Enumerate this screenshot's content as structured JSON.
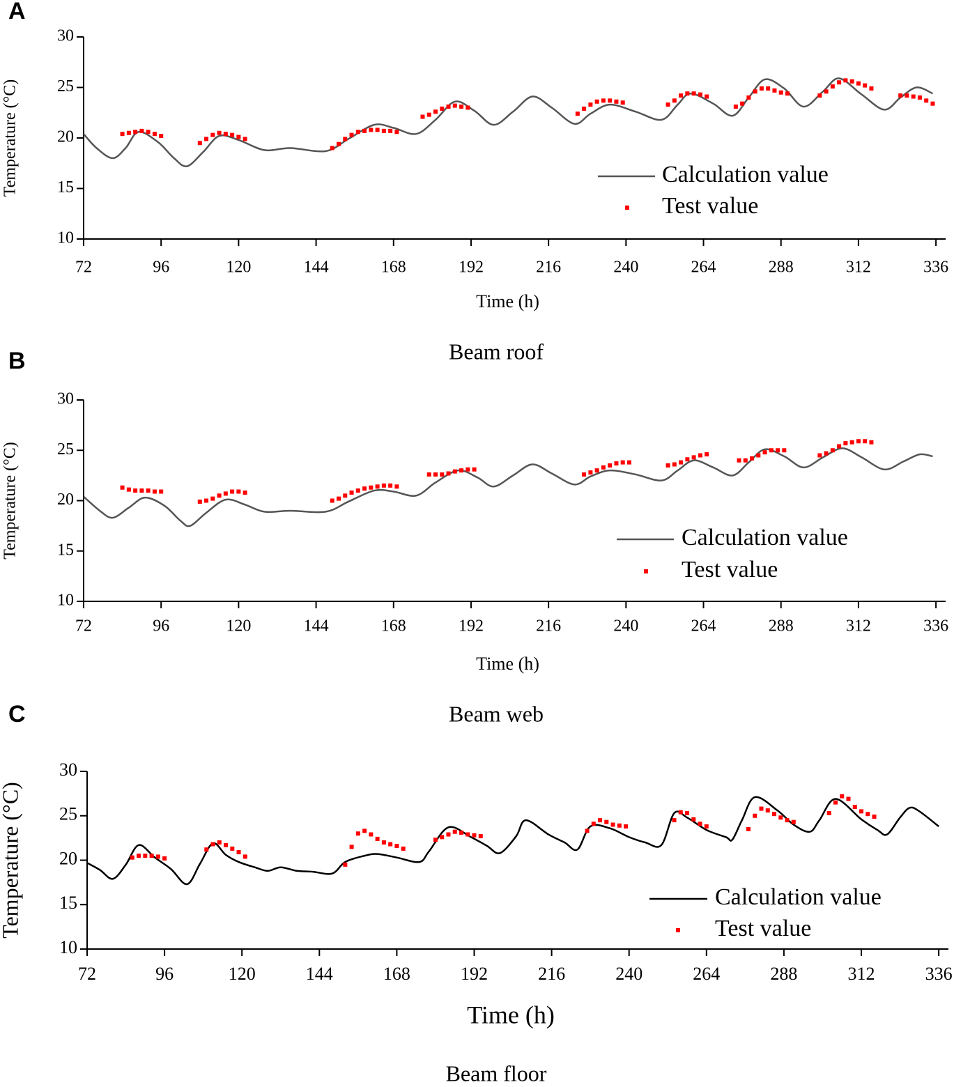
{
  "chart_data": [
    {
      "type": "line",
      "panel_label": "A",
      "title": "Beam roof",
      "xlabel": "Time (h)",
      "ylabel": "Temperature (°C)",
      "xlim": [
        72,
        339
      ],
      "xticks": [
        72,
        96,
        120,
        144,
        168,
        192,
        216,
        240,
        264,
        288,
        312,
        336
      ],
      "ylim": [
        10,
        30
      ],
      "yticks": [
        10,
        15,
        20,
        25,
        30
      ],
      "series": [
        {
          "name": "Calculation value",
          "type": "line",
          "color": "#555555",
          "x": [
            72,
            76,
            81,
            85,
            89,
            95,
            100,
            104,
            109,
            114,
            120,
            128,
            136,
            147,
            154,
            162,
            168,
            175,
            181,
            187,
            193,
            199,
            205,
            211,
            217,
            224,
            229,
            235,
            243,
            251,
            256,
            260,
            267,
            273,
            278,
            283,
            289,
            295,
            301,
            306,
            313,
            320,
            325,
            330,
            335
          ],
          "values": [
            20.4,
            19.0,
            18.0,
            19.0,
            20.6,
            19.6,
            18.0,
            17.2,
            18.6,
            20.2,
            19.8,
            18.8,
            19.0,
            18.7,
            19.9,
            21.3,
            21.0,
            20.4,
            21.8,
            23.6,
            22.7,
            21.3,
            22.6,
            24.1,
            23.0,
            21.4,
            22.4,
            23.3,
            22.6,
            21.8,
            23.3,
            24.4,
            23.4,
            22.2,
            24.0,
            25.8,
            24.9,
            23.1,
            24.6,
            25.9,
            24.3,
            22.8,
            24.0,
            25.0,
            24.4
          ]
        },
        {
          "name": "Test value",
          "type": "scatter",
          "color": "#ff0000",
          "x": [
            84,
            86,
            88,
            90,
            92,
            94,
            96,
            108,
            110,
            112,
            114,
            116,
            118,
            120,
            122,
            149,
            151,
            153,
            155,
            157,
            159,
            161,
            163,
            165,
            167,
            169,
            177,
            179,
            181,
            183,
            185,
            187,
            189,
            191,
            225,
            227,
            229,
            231,
            233,
            235,
            237,
            239,
            253,
            255,
            257,
            259,
            261,
            263,
            265,
            274,
            276,
            278,
            280,
            282,
            284,
            286,
            288,
            290,
            300,
            302,
            304,
            306,
            308,
            310,
            312,
            314,
            316,
            325,
            327,
            329,
            331,
            333,
            335
          ],
          "values": [
            20.4,
            20.5,
            20.6,
            20.7,
            20.6,
            20.4,
            20.2,
            19.5,
            19.9,
            20.3,
            20.5,
            20.4,
            20.3,
            20.1,
            19.9,
            19.0,
            19.4,
            19.9,
            20.3,
            20.6,
            20.7,
            20.8,
            20.8,
            20.7,
            20.7,
            20.6,
            22.1,
            22.3,
            22.6,
            22.9,
            23.1,
            23.2,
            23.1,
            23.0,
            22.4,
            22.9,
            23.3,
            23.6,
            23.7,
            23.7,
            23.6,
            23.5,
            23.3,
            23.7,
            24.2,
            24.4,
            24.4,
            24.3,
            24.1,
            23.1,
            23.4,
            24.0,
            24.6,
            24.9,
            24.9,
            24.7,
            24.5,
            24.4,
            24.2,
            24.6,
            25.1,
            25.5,
            25.7,
            25.6,
            25.4,
            25.2,
            24.9,
            24.2,
            24.2,
            24.1,
            24.0,
            23.7,
            23.4
          ]
        }
      ]
    },
    {
      "type": "line",
      "panel_label": "B",
      "title": "Beam web",
      "xlabel": "Time (h)",
      "ylabel": "Temperature (°C)",
      "xlim": [
        72,
        339
      ],
      "xticks": [
        72,
        96,
        120,
        144,
        168,
        192,
        216,
        240,
        264,
        288,
        312,
        336
      ],
      "ylim": [
        10,
        30
      ],
      "yticks": [
        10,
        15,
        20,
        25,
        30
      ],
      "series": [
        {
          "name": "Calculation value",
          "type": "line",
          "color": "#555555",
          "x": [
            72,
            77,
            81,
            86,
            91,
            97,
            102,
            105,
            110,
            116,
            122,
            128,
            136,
            147,
            154,
            162,
            168,
            175,
            181,
            188,
            194,
            199,
            205,
            211,
            217,
            224,
            229,
            235,
            243,
            251,
            256,
            261,
            267,
            273,
            278,
            283,
            289,
            295,
            301,
            307,
            313,
            320,
            326,
            331,
            335
          ],
          "values": [
            20.4,
            19.0,
            18.3,
            19.3,
            20.3,
            19.5,
            18.0,
            17.5,
            18.8,
            20.1,
            19.6,
            18.9,
            19.0,
            18.9,
            19.9,
            21.0,
            20.9,
            20.5,
            21.8,
            23.0,
            22.3,
            21.4,
            22.5,
            23.6,
            22.7,
            21.6,
            22.4,
            23.0,
            22.6,
            22.0,
            23.0,
            24.0,
            23.3,
            22.5,
            23.8,
            25.1,
            24.4,
            23.3,
            24.3,
            25.2,
            24.3,
            23.1,
            23.9,
            24.6,
            24.4
          ]
        },
        {
          "name": "Test value",
          "type": "scatter",
          "color": "#ff0000",
          "x": [
            84,
            86,
            88,
            90,
            92,
            94,
            96,
            108,
            110,
            112,
            114,
            116,
            118,
            120,
            122,
            149,
            151,
            153,
            155,
            157,
            159,
            161,
            163,
            165,
            167,
            169,
            179,
            181,
            183,
            185,
            187,
            189,
            191,
            193,
            227,
            229,
            231,
            233,
            235,
            237,
            239,
            241,
            253,
            255,
            257,
            259,
            261,
            263,
            265,
            275,
            277,
            279,
            281,
            283,
            285,
            287,
            289,
            300,
            302,
            304,
            306,
            308,
            310,
            312,
            314,
            316
          ],
          "values": [
            21.3,
            21.1,
            21.0,
            21.0,
            21.0,
            20.9,
            20.9,
            19.9,
            20.0,
            20.2,
            20.5,
            20.7,
            20.9,
            20.9,
            20.8,
            20.0,
            20.2,
            20.5,
            20.8,
            21.0,
            21.2,
            21.3,
            21.4,
            21.5,
            21.5,
            21.4,
            22.6,
            22.6,
            22.6,
            22.7,
            22.9,
            23.0,
            23.1,
            23.1,
            22.6,
            22.8,
            23.0,
            23.3,
            23.5,
            23.7,
            23.8,
            23.8,
            23.5,
            23.6,
            23.8,
            24.1,
            24.3,
            24.5,
            24.6,
            24.0,
            24.0,
            24.2,
            24.5,
            24.8,
            25.0,
            25.0,
            25.0,
            24.5,
            24.7,
            25.0,
            25.4,
            25.7,
            25.8,
            25.9,
            25.9,
            25.8
          ]
        }
      ]
    },
    {
      "type": "line",
      "panel_label": "C",
      "title": "Beam floor",
      "xlabel": "Time (h)",
      "ylabel": "Temperature (°C)",
      "xlim": [
        72,
        339
      ],
      "xticks": [
        72,
        96,
        120,
        144,
        168,
        192,
        216,
        240,
        264,
        288,
        312,
        336
      ],
      "ylim": [
        10,
        30
      ],
      "yticks": [
        10,
        15,
        20,
        25,
        30
      ],
      "series": [
        {
          "name": "Calculation value",
          "type": "line",
          "color": "#000000",
          "x": [
            72,
            76,
            80,
            84,
            88,
            93,
            98,
            103,
            107,
            111,
            115,
            119,
            124,
            128,
            132,
            137,
            142,
            148,
            152,
            158,
            162,
            168,
            175,
            178,
            184,
            191,
            196,
            200,
            205,
            208,
            215,
            220,
            224,
            228,
            234,
            240,
            245,
            250,
            254,
            258,
            264,
            270,
            272,
            275,
            279,
            286,
            291,
            296,
            299,
            304,
            312,
            317,
            320,
            324,
            327,
            330,
            336
          ],
          "values": [
            19.7,
            18.9,
            17.9,
            19.5,
            21.7,
            20.3,
            19.0,
            17.3,
            19.6,
            21.9,
            20.6,
            19.8,
            19.2,
            18.8,
            19.2,
            18.8,
            18.7,
            18.5,
            19.8,
            20.5,
            20.7,
            20.3,
            19.8,
            21.0,
            23.7,
            22.6,
            21.6,
            20.8,
            22.7,
            24.5,
            22.9,
            22.0,
            21.2,
            23.8,
            23.6,
            22.6,
            22.0,
            21.7,
            25.3,
            24.8,
            23.4,
            22.6,
            22.3,
            24.5,
            27.1,
            25.6,
            24.0,
            23.2,
            24.5,
            26.9,
            24.6,
            23.4,
            22.9,
            24.8,
            25.9,
            25.5,
            23.8
          ]
        },
        {
          "name": "Test value",
          "type": "scatter",
          "color": "#ff0000",
          "x": [
            86,
            88,
            90,
            92,
            94,
            96,
            109,
            111,
            113,
            115,
            117,
            119,
            121,
            152,
            154,
            156,
            158,
            160,
            162,
            164,
            166,
            168,
            170,
            180,
            182,
            184,
            186,
            188,
            190,
            192,
            194,
            227,
            229,
            231,
            233,
            235,
            237,
            239,
            254,
            256,
            258,
            260,
            262,
            264,
            277,
            279,
            281,
            283,
            285,
            287,
            289,
            291,
            302,
            304,
            306,
            308,
            310,
            312,
            314,
            316
          ],
          "values": [
            20.3,
            20.5,
            20.5,
            20.5,
            20.4,
            20.2,
            21.2,
            21.8,
            22.0,
            21.7,
            21.3,
            20.9,
            20.4,
            19.5,
            21.5,
            23.0,
            23.3,
            22.9,
            22.4,
            22.0,
            21.8,
            21.6,
            21.3,
            22.3,
            22.6,
            22.9,
            23.2,
            23.1,
            22.9,
            22.8,
            22.7,
            23.3,
            24.1,
            24.5,
            24.3,
            24.0,
            23.9,
            23.8,
            24.5,
            25.4,
            25.3,
            24.6,
            24.1,
            23.8,
            23.5,
            25.0,
            25.8,
            25.6,
            25.2,
            24.8,
            24.5,
            24.3,
            25.3,
            26.5,
            27.2,
            26.9,
            26.0,
            25.5,
            25.2,
            24.9
          ]
        }
      ]
    }
  ]
}
